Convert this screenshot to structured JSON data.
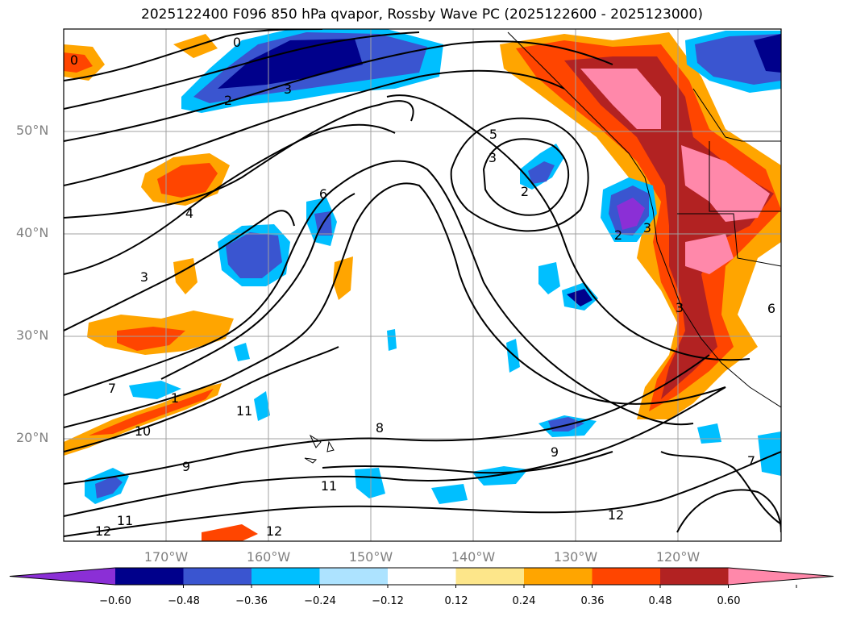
{
  "title": "2025122400 F096 850 hPa qvapor, Rossby Wave PC (2025122600 - 2025123000)",
  "map": {
    "lat_labels": [
      "50°N",
      "40°N",
      "30°N",
      "20°N"
    ],
    "lon_labels": [
      "170°W",
      "160°W",
      "150°W",
      "140°W",
      "130°W",
      "120°W"
    ],
    "lat_values": [
      50,
      40,
      30,
      20
    ],
    "lon_values": [
      -170,
      -160,
      -150,
      -140,
      -130,
      -120
    ],
    "contour_labels": [
      "0",
      "0",
      "3",
      "2",
      "5",
      "3",
      "2",
      "6",
      "4",
      "3",
      "2",
      "3",
      "3",
      "6",
      "7",
      "1",
      "10",
      "11",
      "9",
      "8",
      "9",
      "11",
      "11",
      "12",
      "12",
      "12",
      "7"
    ]
  },
  "colorbar": {
    "tick_labels": [
      "−0.60",
      "−0.48",
      "−0.36",
      "−0.24",
      "−0.12",
      "0.12",
      "0.24",
      "0.36",
      "0.48",
      "0.60"
    ],
    "colors": [
      "#8b2fd6",
      "#00008b",
      "#3a55d0",
      "#00bfff",
      "#ade3ff",
      "#ffffff",
      "#fde68a",
      "#ffa500",
      "#ff4500",
      "#b22222",
      "#ff88aa"
    ]
  },
  "colors": {
    "land_outline": "#000000",
    "grid": "#a0a0a0",
    "contour": "#000000"
  }
}
